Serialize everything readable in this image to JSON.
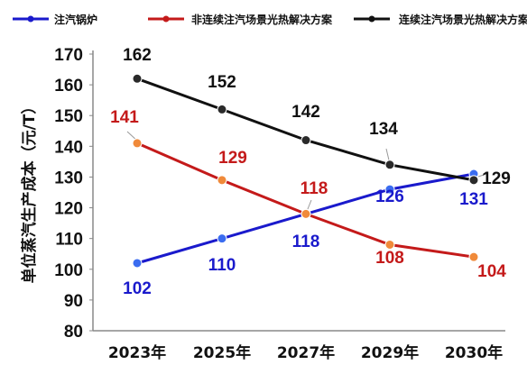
{
  "chart_data": {
    "type": "line",
    "title": "",
    "xlabel": "",
    "ylabel": "单位蒸汽生产成本（元/T）",
    "ylim": [
      80,
      170
    ],
    "yticks": [
      80,
      90,
      100,
      110,
      120,
      130,
      140,
      150,
      160,
      170
    ],
    "categories": [
      "2023年",
      "2025年",
      "2027年",
      "2029年",
      "2030年"
    ],
    "grid": false,
    "legend_position": "top",
    "series": [
      {
        "name": "注汽锅炉",
        "color": "#1a1acc",
        "values": [
          102,
          110,
          118,
          126,
          131
        ]
      },
      {
        "name": "非连续注汽场景光热解决方案",
        "color": "#c41a1a",
        "values": [
          141,
          129,
          118,
          108,
          104
        ]
      },
      {
        "name": "连续注汽场景光热解决方案",
        "color": "#111111",
        "values": [
          162,
          152,
          142,
          134,
          129
        ]
      }
    ]
  }
}
